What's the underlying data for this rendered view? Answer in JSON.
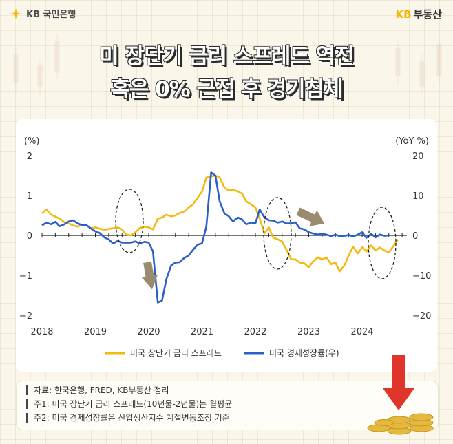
{
  "brand": {
    "left_label": "KB 국민은행",
    "right_kb": "KB",
    "right_label": "부동산"
  },
  "title": {
    "line1": "미 장단기 금리 스프레드 역전",
    "line2": "혹은 0% 근접 후 경기침체"
  },
  "colors": {
    "spread": "#f2b90f",
    "growth": "#2a5fc7",
    "arrow": "#9b8b6e",
    "down_arrow": "#e0352b"
  },
  "chart_data": {
    "type": "line",
    "left_axis": {
      "label": "(%)",
      "ylim": [
        -2,
        2
      ],
      "ticks": [
        "2",
        "1",
        "0",
        "−1",
        "−2"
      ]
    },
    "right_axis": {
      "label": "(YoY %)",
      "ylim": [
        -20,
        20
      ],
      "ticks": [
        "20",
        "10",
        "0",
        "−10",
        "−20"
      ]
    },
    "x_ticks": [
      "2018",
      "2019",
      "2020",
      "2021",
      "2022",
      "2023",
      "2024"
    ],
    "series": [
      {
        "name": "미국 장단기 금리 스프레드",
        "axis": "left",
        "x": [
          2018.0,
          2018.08,
          2018.17,
          2018.25,
          2018.33,
          2018.42,
          2018.5,
          2018.58,
          2018.67,
          2018.75,
          2018.83,
          2018.92,
          2019.0,
          2019.08,
          2019.17,
          2019.25,
          2019.33,
          2019.42,
          2019.5,
          2019.58,
          2019.67,
          2019.75,
          2019.83,
          2019.92,
          2020.0,
          2020.08,
          2020.17,
          2020.25,
          2020.33,
          2020.42,
          2020.5,
          2020.58,
          2020.67,
          2020.75,
          2020.83,
          2020.92,
          2021.0,
          2021.08,
          2021.17,
          2021.25,
          2021.33,
          2021.42,
          2021.5,
          2021.58,
          2021.67,
          2021.75,
          2021.83,
          2021.92,
          2022.0,
          2022.08,
          2022.17,
          2022.25,
          2022.33,
          2022.42,
          2022.5,
          2022.58,
          2022.67,
          2022.75,
          2022.83,
          2022.92,
          2023.0,
          2023.08,
          2023.17,
          2023.25,
          2023.33,
          2023.42,
          2023.5,
          2023.58,
          2023.67,
          2023.75,
          2023.83,
          2023.92,
          2024.0,
          2024.08,
          2024.17,
          2024.25,
          2024.33,
          2024.42,
          2024.5,
          2024.58,
          2024.67
        ],
        "values": [
          0.55,
          0.65,
          0.52,
          0.47,
          0.42,
          0.33,
          0.3,
          0.25,
          0.22,
          0.27,
          0.25,
          0.18,
          0.2,
          0.17,
          0.14,
          0.16,
          0.18,
          0.2,
          0.15,
          0.02,
          0.0,
          0.08,
          0.18,
          0.22,
          0.2,
          0.15,
          0.42,
          0.45,
          0.52,
          0.48,
          0.5,
          0.56,
          0.6,
          0.7,
          0.78,
          0.95,
          1.1,
          1.45,
          1.48,
          1.5,
          1.45,
          1.2,
          1.12,
          1.15,
          1.1,
          1.05,
          0.85,
          0.78,
          0.7,
          0.42,
          0.05,
          0.2,
          -0.05,
          -0.1,
          -0.15,
          -0.35,
          -0.6,
          -0.6,
          -0.68,
          -0.7,
          -0.8,
          -0.65,
          -0.55,
          -0.6,
          -0.55,
          -0.72,
          -0.68,
          -0.9,
          -0.75,
          -0.5,
          -0.28,
          -0.45,
          -0.3,
          -0.4,
          -0.25,
          -0.38,
          -0.3,
          -0.38,
          -0.42,
          -0.28,
          -0.1
        ]
      },
      {
        "name": "미국 경제성장률(우)",
        "axis": "right",
        "x": [
          2018.0,
          2018.08,
          2018.17,
          2018.25,
          2018.33,
          2018.42,
          2018.5,
          2018.58,
          2018.67,
          2018.75,
          2018.83,
          2018.92,
          2019.0,
          2019.08,
          2019.17,
          2019.25,
          2019.33,
          2019.42,
          2019.5,
          2019.58,
          2019.67,
          2019.75,
          2019.83,
          2019.92,
          2020.0,
          2020.08,
          2020.17,
          2020.25,
          2020.33,
          2020.42,
          2020.5,
          2020.58,
          2020.67,
          2020.75,
          2020.83,
          2020.92,
          2021.0,
          2021.08,
          2021.17,
          2021.25,
          2021.33,
          2021.42,
          2021.5,
          2021.58,
          2021.67,
          2021.75,
          2021.83,
          2021.92,
          2022.0,
          2022.08,
          2022.17,
          2022.25,
          2022.33,
          2022.42,
          2022.5,
          2022.58,
          2022.67,
          2022.75,
          2022.83,
          2022.92,
          2023.0,
          2023.08,
          2023.17,
          2023.25,
          2023.33,
          2023.42,
          2023.5,
          2023.58,
          2023.67,
          2023.75,
          2023.83,
          2023.92,
          2024.0,
          2024.08,
          2024.17,
          2024.25,
          2024.33,
          2024.42,
          2024.5
        ],
        "values": [
          2.5,
          3.2,
          2.8,
          3.4,
          2.3,
          2.8,
          3.5,
          3.8,
          3.0,
          2.6,
          2.6,
          1.7,
          1.0,
          0.6,
          -0.5,
          -1.0,
          -2.0,
          -1.4,
          -1.8,
          -1.8,
          -1.8,
          -1.5,
          -2.0,
          -1.6,
          -1.8,
          -4.0,
          -16.8,
          -16.3,
          -11.0,
          -7.5,
          -6.8,
          -6.7,
          -5.6,
          -5.0,
          -3.6,
          -2.3,
          -2.0,
          2.2,
          15.8,
          15.0,
          8.5,
          5.5,
          4.8,
          3.5,
          4.5,
          4.0,
          2.8,
          3.2,
          3.0,
          6.5,
          4.5,
          3.8,
          3.7,
          3.2,
          3.5,
          3.0,
          3.0,
          3.3,
          1.8,
          1.5,
          0.8,
          0.5,
          0.2,
          0.4,
          0.2,
          -0.2,
          0.2,
          -0.2,
          -0.1,
          0.1,
          -0.3,
          0.2,
          0.8,
          -0.6,
          0.4,
          -0.5,
          0.2,
          -0.1,
          0.0
        ]
      }
    ],
    "legend_position": "bottom",
    "grid": false
  },
  "notes": [
    "자료: 한국은행, FRED, KB부동산 정리",
    "주1: 미국 장단기 금리 스프레드(10년물-2년물)는 월평균",
    "주2: 미국 경제성장률은 산업생산지수 계절변동조정 기준"
  ]
}
